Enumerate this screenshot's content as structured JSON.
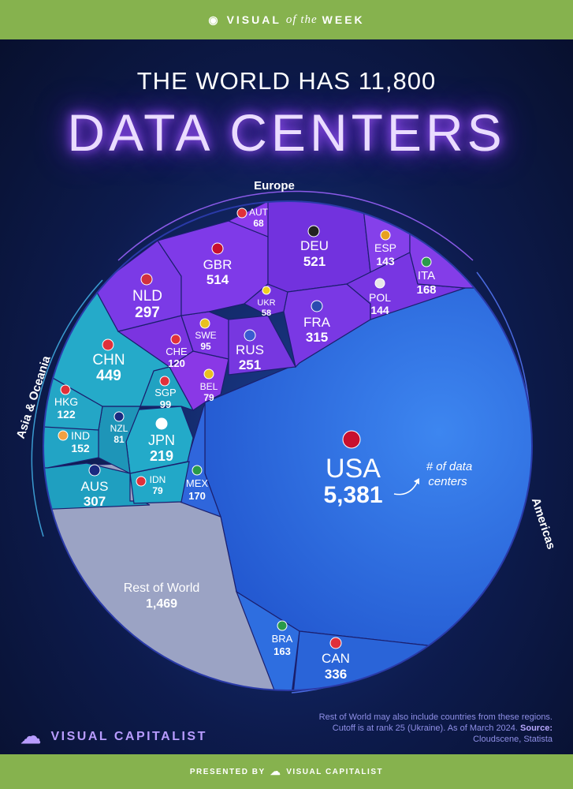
{
  "header": {
    "pre": "VISUAL",
    "mid": "of the",
    "post": "WEEK"
  },
  "title_line1": "THE WORLD HAS 11,800",
  "title_line2": "DATA CENTERS",
  "annotation": "# of data centers",
  "footer_note": {
    "text": "Rest of World may also include countries from these regions. Cutoff is at rank 25 (Ukraine). As of March 2024.",
    "source_label": "Source:",
    "source": "Cloudscene, Statista"
  },
  "logo_text": "VISUAL CAPITALIST",
  "presented_by": "PRESENTED BY",
  "presented_brand": "VISUAL CAPITALIST",
  "colors": {
    "europe": "#7a3ae6",
    "asia": "#21a7c7",
    "americas": "#2e72e6",
    "rest": "#9ba3c4",
    "bar": "#86b24e",
    "glow": "#a35cff"
  },
  "chart_data": {
    "type": "voronoi treemap",
    "title": "DATA CENTERS",
    "total": "11,800",
    "regions": [
      {
        "name": "Europe",
        "countries": [
          {
            "code": "AUT",
            "value": 68
          },
          {
            "code": "DEU",
            "value": 521
          },
          {
            "code": "ESP",
            "value": 143
          },
          {
            "code": "GBR",
            "value": 514
          },
          {
            "code": "ITA",
            "value": 168
          },
          {
            "code": "NLD",
            "value": 297
          },
          {
            "code": "UKR",
            "value": 58
          },
          {
            "code": "POL",
            "value": 144
          },
          {
            "code": "FRA",
            "value": 315
          },
          {
            "code": "SWE",
            "value": 95
          },
          {
            "code": "CHE",
            "value": 120
          },
          {
            "code": "RUS",
            "value": 251
          },
          {
            "code": "BEL",
            "value": 79
          }
        ]
      },
      {
        "name": "Asia & Oceania",
        "countries": [
          {
            "code": "CHN",
            "value": 449
          },
          {
            "code": "SGP",
            "value": 99
          },
          {
            "code": "HKG",
            "value": 122
          },
          {
            "code": "NZL",
            "value": 81
          },
          {
            "code": "IND",
            "value": 152
          },
          {
            "code": "JPN",
            "value": 219
          },
          {
            "code": "AUS",
            "value": 307
          },
          {
            "code": "IDN",
            "value": 79
          }
        ]
      },
      {
        "name": "Americas",
        "countries": [
          {
            "code": "USA",
            "value": 5381
          },
          {
            "code": "MEX",
            "value": 170
          },
          {
            "code": "BRA",
            "value": 163
          },
          {
            "code": "CAN",
            "value": 336
          }
        ]
      },
      {
        "name": "Rest of World",
        "value": 1469
      }
    ]
  },
  "labels": {
    "AUT": {
      "code": "AUT",
      "value": "68"
    },
    "DEU": {
      "code": "DEU",
      "value": "521"
    },
    "ESP": {
      "code": "ESP",
      "value": "143"
    },
    "GBR": {
      "code": "GBR",
      "value": "514"
    },
    "ITA": {
      "code": "ITA",
      "value": "168"
    },
    "NLD": {
      "code": "NLD",
      "value": "297"
    },
    "UKR": {
      "code": "UKR",
      "value": "58"
    },
    "POL": {
      "code": "POL",
      "value": "144"
    },
    "FRA": {
      "code": "FRA",
      "value": "315"
    },
    "SWE": {
      "code": "SWE",
      "value": "95"
    },
    "CHE": {
      "code": "CHE",
      "value": "120"
    },
    "RUS": {
      "code": "RUS",
      "value": "251"
    },
    "BEL": {
      "code": "BEL",
      "value": "79"
    },
    "CHN": {
      "code": "CHN",
      "value": "449"
    },
    "SGP": {
      "code": "SGP",
      "value": "99"
    },
    "HKG": {
      "code": "HKG",
      "value": "122"
    },
    "NZL": {
      "code": "NZL",
      "value": "81"
    },
    "IND": {
      "code": "IND",
      "value": "152"
    },
    "JPN": {
      "code": "JPN",
      "value": "219"
    },
    "AUS": {
      "code": "AUS",
      "value": "307"
    },
    "IDN": {
      "code": "IDN",
      "value": "79"
    },
    "MEX": {
      "code": "MEX",
      "value": "170"
    },
    "USA": {
      "code": "USA",
      "value": "5,381"
    },
    "BRA": {
      "code": "BRA",
      "value": "163"
    },
    "CAN": {
      "code": "CAN",
      "value": "336"
    },
    "ROW": {
      "code": "Rest of World",
      "value": "1,469"
    },
    "region_europe": "Europe",
    "region_asia": "Asia & Oceania",
    "region_americas": "Americas"
  }
}
